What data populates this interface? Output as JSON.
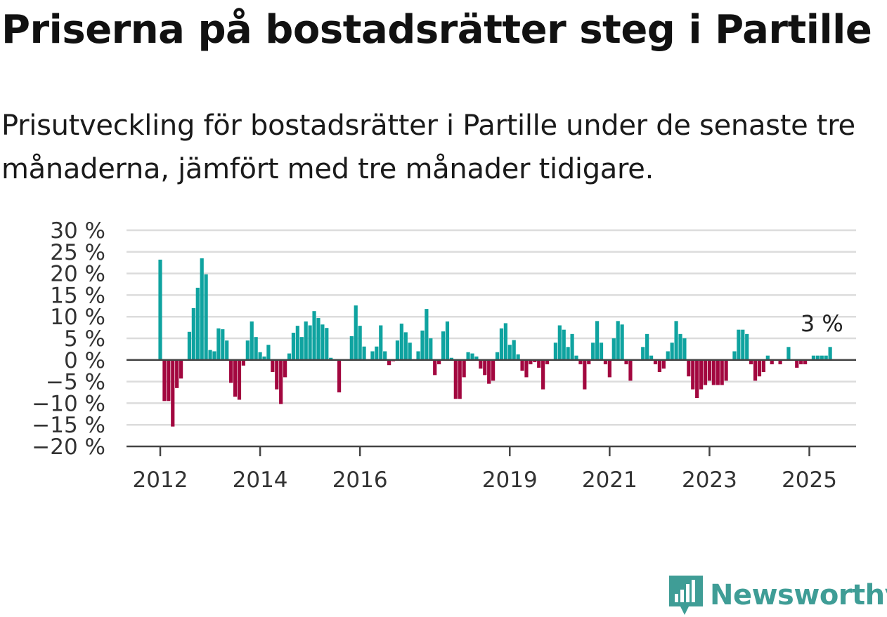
{
  "title": "Priserna på bostadsrätter steg i Partille",
  "subtitle": "Prisutveckling för bostadsrätter i Partille under de senaste tre månaderna, jämfört med tre månader tidigare.",
  "brand": {
    "name": "Newsworthy",
    "color": "#3f9d96"
  },
  "colors": {
    "positive": "#0fa3a0",
    "negative": "#a2073f",
    "grid": "#dcdcdc",
    "axis": "#444444"
  },
  "chart_data": {
    "type": "bar",
    "title": "",
    "xlabel": "",
    "ylabel": "",
    "ylim": [
      -20,
      30
    ],
    "yticks": [
      {
        "value": 30,
        "label": "30 %"
      },
      {
        "value": 25,
        "label": "25 %"
      },
      {
        "value": 20,
        "label": "20 %"
      },
      {
        "value": 15,
        "label": "15 %"
      },
      {
        "value": 10,
        "label": "10 %"
      },
      {
        "value": 5,
        "label": "5 %"
      },
      {
        "value": 0,
        "label": "0 %"
      },
      {
        "value": -5,
        "label": "−5 %"
      },
      {
        "value": -10,
        "label": "−10 %"
      },
      {
        "value": -15,
        "label": "−15 %"
      },
      {
        "value": -20,
        "label": "−20 %"
      }
    ],
    "xticks": [
      {
        "month": 0,
        "label": "2012"
      },
      {
        "month": 24,
        "label": "2014"
      },
      {
        "month": 48,
        "label": "2016"
      },
      {
        "month": 84,
        "label": "2019"
      },
      {
        "month": 108,
        "label": "2021"
      },
      {
        "month": 132,
        "label": "2023"
      },
      {
        "month": 156,
        "label": "2025"
      }
    ],
    "start": "2012-01",
    "grid": true,
    "annotation": {
      "text": "3 %",
      "month": 158
    },
    "values": [
      23.2,
      -9.5,
      -9.5,
      -15.4,
      -6.5,
      -4.3,
      0,
      6.5,
      12.0,
      16.7,
      23.5,
      19.8,
      2.3,
      2.0,
      7.3,
      7.1,
      4.5,
      -5.3,
      -8.5,
      -9.2,
      -1.3,
      4.5,
      8.9,
      5.3,
      1.8,
      0.8,
      3.5,
      -2.8,
      -6.8,
      -10.2,
      -4.0,
      1.5,
      6.3,
      7.9,
      5.3,
      8.9,
      8.0,
      11.3,
      9.7,
      8.2,
      7.4,
      0.5,
      0,
      -7.5,
      0,
      0,
      5.5,
      12.6,
      7.9,
      3.1,
      0,
      2.0,
      3.1,
      8.0,
      2.0,
      -1.2,
      -0.3,
      4.5,
      8.4,
      6.4,
      4.0,
      0,
      2.0,
      6.8,
      11.8,
      5.0,
      -3.5,
      -1.0,
      6.6,
      8.9,
      0.5,
      -9.0,
      -9.0,
      -4.0,
      1.8,
      1.5,
      0.8,
      -2.0,
      -3.5,
      -5.5,
      -4.8,
      1.8,
      7.3,
      8.5,
      3.5,
      4.6,
      1.3,
      -2.5,
      -4.0,
      -1.0,
      -0.5,
      -1.8,
      -6.8,
      -1.0,
      0,
      4.0,
      8.0,
      7.0,
      3.0,
      6.0,
      1.0,
      -1.0,
      -6.8,
      -1.0,
      4.0,
      9.0,
      4.0,
      -1.0,
      -4.0,
      5.0,
      9.0,
      8.2,
      -1.0,
      -4.8,
      0,
      0,
      3.0,
      6.0,
      1.0,
      -1.0,
      -2.8,
      -2.0,
      2.0,
      4.0,
      9.0,
      6.0,
      5.0,
      -3.8,
      -6.8,
      -8.8,
      -6.8,
      -5.8,
      -4.8,
      -5.8,
      -5.8,
      -5.8,
      -4.8,
      0,
      2.0,
      7.0,
      7.0,
      6.0,
      -1.0,
      -4.8,
      -3.8,
      -2.8,
      1.0,
      -1.0,
      0,
      -1.0,
      0,
      3.0,
      0,
      -1.8,
      -1.0,
      -1.0,
      0,
      1.0,
      1.0,
      1.0,
      1.0,
      3.0
    ]
  }
}
